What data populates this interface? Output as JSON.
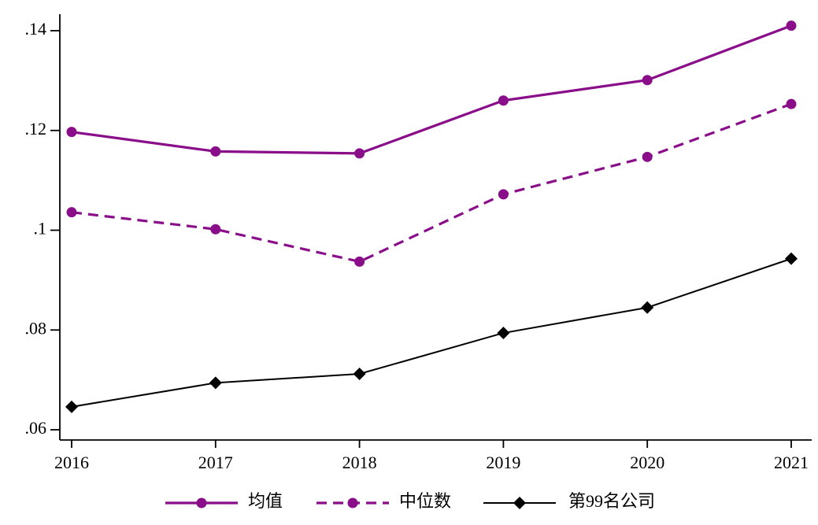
{
  "chart_data": {
    "type": "line",
    "title": "",
    "xlabel": "",
    "ylabel": "",
    "x": [
      2016,
      2017,
      2018,
      2019,
      2020,
      2021
    ],
    "x_tick_labels": [
      "2016",
      "2017",
      "2018",
      "2019",
      "2020",
      "2021"
    ],
    "y_ticks": [
      0.06,
      0.08,
      0.1,
      0.12,
      0.14
    ],
    "y_tick_labels": [
      ".06",
      ".08",
      ".1",
      ".12",
      ".14"
    ],
    "ylim": [
      0.055,
      0.144
    ],
    "grid": false,
    "legend_position": "bottom",
    "series": [
      {
        "key": "mean",
        "name": "均值",
        "color": "#8A0D8A",
        "line_style": "solid",
        "marker": "circle",
        "values": [
          0.1197,
          0.1158,
          0.1154,
          0.126,
          0.1301,
          0.141
        ]
      },
      {
        "key": "median",
        "name": "中位数",
        "color": "#8A0D8A",
        "line_style": "dashed",
        "marker": "circle",
        "values": [
          0.1036,
          0.1002,
          0.0937,
          0.1072,
          0.1147,
          0.1253
        ]
      },
      {
        "key": "p99",
        "name": "第99名公司",
        "color": "#000000",
        "line_style": "solid",
        "marker": "diamond",
        "values": [
          0.0646,
          0.0694,
          0.0712,
          0.0794,
          0.0845,
          0.0943
        ]
      }
    ],
    "colors": {
      "accent_purple": "#8A0D8A",
      "line_black": "#000000",
      "axis": "#000000",
      "background": "#FFFFFF"
    }
  }
}
